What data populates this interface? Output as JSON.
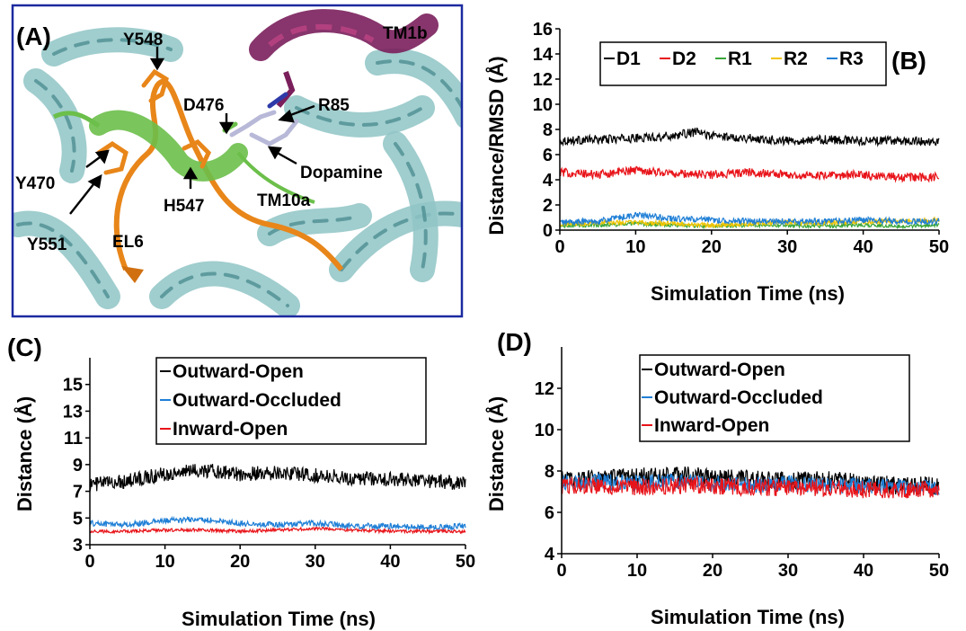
{
  "panel_a": {
    "letter": "(A)",
    "labels": {
      "y548": "Y548",
      "tm1b": "TM1b",
      "d476": "D476",
      "r85": "R85",
      "y470": "Y470",
      "dopamine": "Dopamine",
      "tm10a": "TM10a",
      "h547": "H547",
      "y551": "Y551",
      "el6": "EL6"
    },
    "colors": {
      "frame": "#1c2aa0",
      "helix": "#8fc4c6",
      "helix_dark": "#4e8f92",
      "tm1b": "#7a1f5c",
      "el6": "#e8861a",
      "tm10a": "#6bbf4a",
      "dopamine": "#b8b8d8",
      "background": "#ffffff"
    }
  },
  "chart_data": [
    {
      "panel": "(B)",
      "type": "line",
      "xlabel": "Simulation Time (ns)",
      "ylabel": "Distance/RMSD (Å)",
      "xlim": [
        0,
        50
      ],
      "ylim": [
        0,
        16
      ],
      "xticks": [
        "0",
        "10",
        "20",
        "30",
        "40",
        "50"
      ],
      "yticks": [
        "0",
        "2",
        "4",
        "6",
        "8",
        "10",
        "12",
        "14",
        "16"
      ],
      "legend_position": "top-right",
      "series": [
        {
          "name": "D1",
          "color": "#000000",
          "x": [
            0,
            5,
            10,
            15,
            18,
            20,
            25,
            30,
            35,
            40,
            45,
            50
          ],
          "y": [
            7.1,
            7.2,
            7.3,
            7.5,
            7.8,
            7.5,
            7.3,
            7.1,
            7.2,
            7.1,
            7.1,
            7.0
          ]
        },
        {
          "name": "D2",
          "color": "#e8141a",
          "x": [
            0,
            5,
            10,
            15,
            20,
            25,
            30,
            35,
            40,
            45,
            50
          ],
          "y": [
            4.6,
            4.4,
            4.8,
            4.5,
            4.4,
            4.6,
            4.4,
            4.3,
            4.4,
            4.2,
            4.2
          ]
        },
        {
          "name": "R1",
          "color": "#3aa63a",
          "x": [
            0,
            5,
            10,
            15,
            20,
            25,
            30,
            35,
            40,
            45,
            50
          ],
          "y": [
            0.3,
            0.4,
            0.5,
            0.4,
            0.3,
            0.4,
            0.4,
            0.3,
            0.4,
            0.3,
            0.4
          ]
        },
        {
          "name": "R2",
          "color": "#f0c400",
          "x": [
            0,
            5,
            10,
            15,
            20,
            25,
            30,
            35,
            40,
            45,
            50
          ],
          "y": [
            0.5,
            0.6,
            0.6,
            0.5,
            0.4,
            0.5,
            0.6,
            0.6,
            0.7,
            0.7,
            0.8
          ]
        },
        {
          "name": "R3",
          "color": "#1f7fd6",
          "x": [
            0,
            5,
            10,
            15,
            20,
            25,
            30,
            35,
            40,
            45,
            50
          ],
          "y": [
            0.6,
            0.7,
            1.2,
            0.9,
            0.8,
            0.7,
            0.7,
            0.7,
            0.8,
            0.7,
            0.7
          ]
        }
      ]
    },
    {
      "panel": "(C)",
      "type": "line",
      "xlabel": "Simulation Time (ns)",
      "ylabel": "Distance (Å)",
      "xlim": [
        0,
        50
      ],
      "ylim": [
        3,
        17
      ],
      "xticks": [
        "0",
        "10",
        "20",
        "30",
        "40",
        "50"
      ],
      "yticks": [
        "3",
        "5",
        "7",
        "9",
        "11",
        "13",
        "15"
      ],
      "legend_position": "top-right",
      "series": [
        {
          "name": "Outward-Open",
          "color": "#000000",
          "x": [
            0,
            5,
            10,
            15,
            20,
            25,
            30,
            35,
            40,
            45,
            50
          ],
          "y": [
            7.5,
            7.8,
            8.3,
            8.6,
            8.3,
            8.4,
            8.2,
            8.0,
            7.9,
            7.8,
            7.6
          ]
        },
        {
          "name": "Outward-Occluded",
          "color": "#1f7fd6",
          "x": [
            0,
            5,
            10,
            15,
            20,
            25,
            30,
            35,
            40,
            45,
            50
          ],
          "y": [
            4.6,
            4.5,
            4.8,
            4.9,
            4.6,
            4.5,
            4.6,
            4.4,
            4.4,
            4.3,
            4.4
          ]
        },
        {
          "name": "Inward-Open",
          "color": "#e8141a",
          "x": [
            0,
            5,
            10,
            15,
            20,
            25,
            30,
            35,
            40,
            45,
            50
          ],
          "y": [
            4.0,
            4.0,
            4.1,
            4.1,
            4.0,
            4.1,
            4.2,
            4.1,
            4.0,
            4.0,
            4.0
          ]
        }
      ]
    },
    {
      "panel": "(D)",
      "type": "line",
      "xlabel": "Simulation Time (ns)",
      "ylabel": "Distance (Å)",
      "xlim": [
        0,
        50
      ],
      "ylim": [
        4,
        14
      ],
      "xticks": [
        "0",
        "10",
        "20",
        "30",
        "40",
        "50"
      ],
      "yticks": [
        "4",
        "6",
        "8",
        "10",
        "12"
      ],
      "legend_position": "top-right",
      "series": [
        {
          "name": "Outward-Open",
          "color": "#000000",
          "x": [
            0,
            5,
            10,
            15,
            20,
            25,
            30,
            35,
            40,
            45,
            50
          ],
          "y": [
            7.6,
            7.6,
            7.7,
            7.8,
            7.7,
            7.6,
            7.5,
            7.6,
            7.4,
            7.3,
            7.3
          ]
        },
        {
          "name": "Outward-Occluded",
          "color": "#1f7fd6",
          "x": [
            0,
            5,
            10,
            15,
            20,
            25,
            30,
            35,
            40,
            45,
            50
          ],
          "y": [
            7.4,
            7.5,
            7.4,
            7.5,
            7.4,
            7.3,
            7.4,
            7.3,
            7.3,
            7.2,
            7.2
          ]
        },
        {
          "name": "Inward-Open",
          "color": "#e8141a",
          "x": [
            0,
            5,
            10,
            15,
            20,
            25,
            30,
            35,
            40,
            45,
            50
          ],
          "y": [
            7.3,
            7.3,
            7.2,
            7.3,
            7.3,
            7.2,
            7.2,
            7.2,
            7.1,
            7.1,
            7.1
          ]
        }
      ]
    }
  ]
}
